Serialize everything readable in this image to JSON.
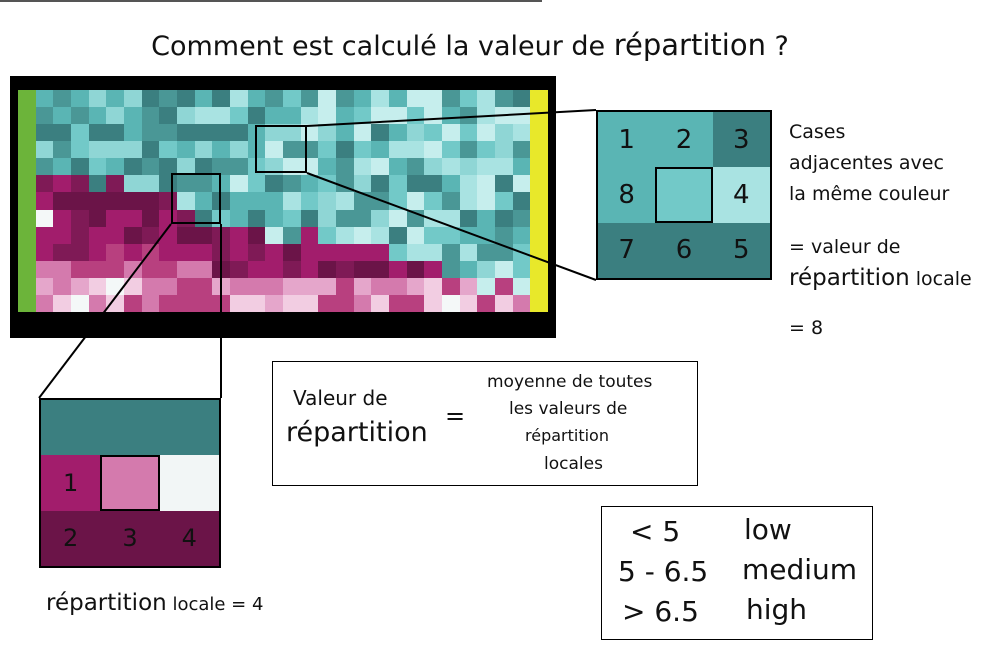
{
  "title": {
    "part1": "Comment est calculé la valeur de ",
    "part2": "répartition",
    "part3": " ?"
  },
  "colors": {
    "teal_dark": "#3b7f80",
    "teal_mid": "#5ab5b4",
    "teal_light": "#a9e3e2",
    "pink_dark": "#6b1448",
    "pink_mid": "#a21d6c",
    "pink_light": "#e5a6cb",
    "green_edge": "#6cb43a",
    "yellow_edge": "#e8e82a"
  },
  "zoom_right": {
    "cells": [
      "1",
      "2",
      "3",
      "8",
      "",
      "4",
      "7",
      "6",
      "5"
    ]
  },
  "right_text": {
    "line1": "Cases",
    "line2": "adjacentes avec",
    "line3": "la même couleur",
    "line4": "= valeur de",
    "line5a": "répartition",
    "line5b": " locale",
    "line6": "= 8"
  },
  "zoom_left": {
    "cells": [
      "",
      "1",
      "",
      "",
      "2",
      "3",
      "4"
    ]
  },
  "left_caption": {
    "a": "répartition",
    "b": " locale = 4"
  },
  "formula": {
    "lhs1": "Valeur de",
    "lhs2": "répartition",
    "equals": "=",
    "rhs1": "moyenne de toutes",
    "rhs2": "les valeurs de",
    "rhs3": "répartition",
    "rhs4": "locales"
  },
  "legend": {
    "rows": [
      {
        "range": "< 5",
        "label": "low"
      },
      {
        "range": "5 - 6.5",
        "label": "medium"
      },
      {
        "range": "> 6.5",
        "label": "high"
      }
    ]
  }
}
